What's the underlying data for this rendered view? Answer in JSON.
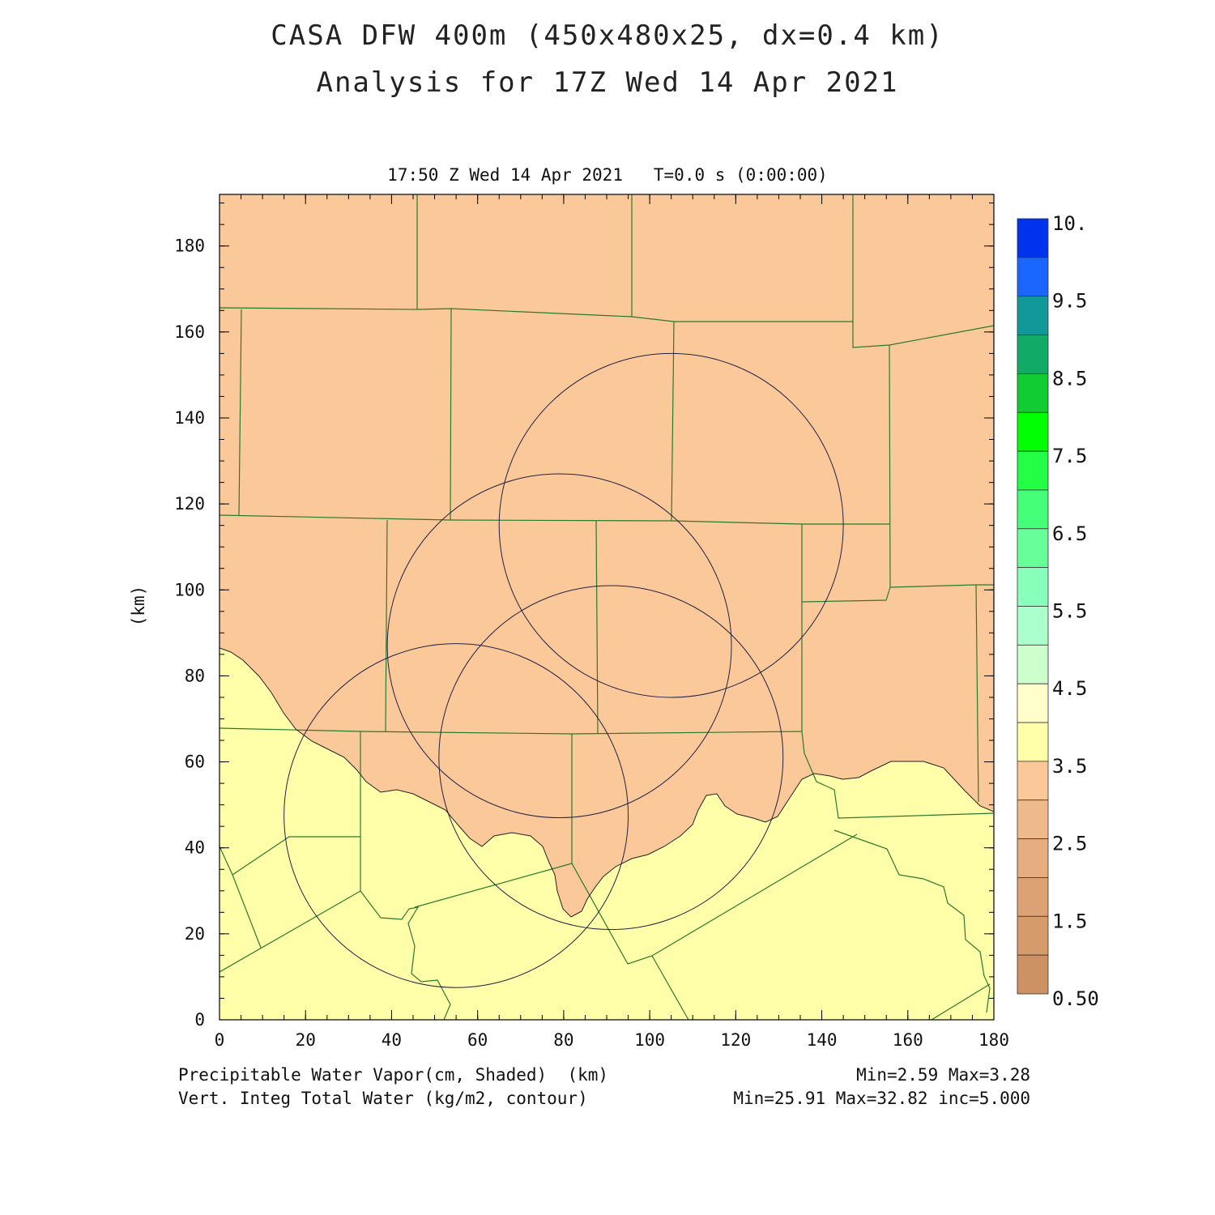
{
  "title": {
    "line1": "CASA DFW 400m (450x480x25, dx=0.4 km)",
    "line2": "Analysis for 17Z Wed 14 Apr 2021"
  },
  "timeline": "17:50 Z Wed 14 Apr 2021   T=0.0 s (0:00:00)",
  "axes": {
    "x_label": "(km)",
    "y_label": "(km)",
    "x_ticks": [
      "0",
      "20",
      "40",
      "60",
      "80",
      "100",
      "120",
      "140",
      "160",
      "180"
    ],
    "y_ticks": [
      "0",
      "20",
      "40",
      "60",
      "80",
      "100",
      "120",
      "140",
      "160",
      "180"
    ],
    "xlim": [
      0,
      180
    ],
    "ylim": [
      0,
      192
    ]
  },
  "fields": {
    "shaded": "Precipitable Water Vapor(cm, Shaded)",
    "contour": "Vert. Integ Total Water (kg/m2, contour)",
    "shaded_stats": "Min=2.59 Max=3.28",
    "contour_stats": "Min=25.91 Max=32.82 inc=5.000"
  },
  "colorbar": {
    "labels": [
      "10.",
      "9.5",
      "8.5",
      "7.5",
      "6.5",
      "5.5",
      "4.5",
      "3.5",
      "2.5",
      "1.5",
      "0.50"
    ],
    "colors": [
      "#0033ee",
      "#1a66ff",
      "#119999",
      "#11aa66",
      "#11cc33",
      "#00ff00",
      "#22ff44",
      "#44ff77",
      "#66ff99",
      "#88ffbb",
      "#aaffcc",
      "#ccffcc",
      "#ffffcc",
      "#ffffaa",
      "#fbc89a",
      "#eeb98b",
      "#e6ae80",
      "#dca273",
      "#d59b6a",
      "#cd9263"
    ]
  },
  "map_colors": {
    "low_region": "#fbc89a",
    "high_region": "#ffffaa",
    "county_lines": "#2a7a2a",
    "contours": "#222244"
  },
  "contour_circles": [
    {
      "cx": 105.0,
      "cy": 115.0,
      "r": 40.0
    },
    {
      "cx": 79.0,
      "cy": 87.0,
      "r": 40.0
    },
    {
      "cx": 91.0,
      "cy": 61.0,
      "r": 40.0
    },
    {
      "cx": 55.0,
      "cy": 47.5,
      "r": 40.0
    }
  ]
}
